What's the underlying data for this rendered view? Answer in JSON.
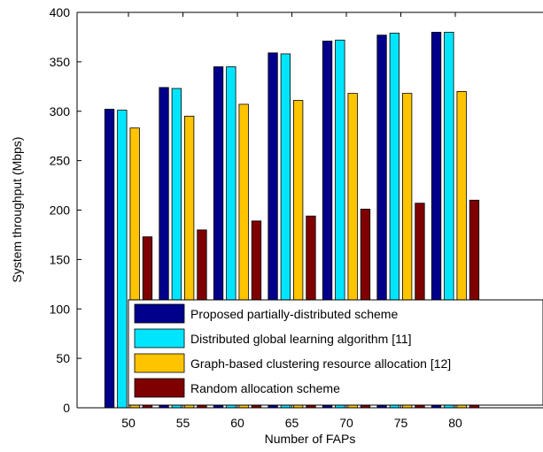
{
  "chart_data": {
    "type": "bar",
    "title": "",
    "xlabel": "Number of FAPs",
    "ylabel": "System throughput (Mbps)",
    "categories": [
      "50",
      "55",
      "60",
      "65",
      "70",
      "75",
      "80"
    ],
    "ylim": [
      0,
      400
    ],
    "yticks": [
      "0",
      "50",
      "100",
      "150",
      "200",
      "250",
      "300",
      "350",
      "400"
    ],
    "grid": false,
    "legend_position": "bottom-right",
    "series": [
      {
        "name": "Proposed partially-distributed scheme",
        "color": "#00008b",
        "values": [
          302,
          324,
          345,
          359,
          371,
          377,
          380
        ]
      },
      {
        "name": "Distributed global learning algorithm [11]",
        "color": "#00e5ff",
        "values": [
          301,
          323,
          345,
          358,
          372,
          379,
          380
        ]
      },
      {
        "name": "Graph-based clustering resource allocation [12]",
        "color": "#ffc400",
        "values": [
          283,
          295,
          307,
          311,
          318,
          318,
          320
        ]
      },
      {
        "name": "Random allocation scheme",
        "color": "#7f0000",
        "values": [
          173,
          180,
          189,
          194,
          201,
          207,
          210
        ]
      }
    ]
  }
}
